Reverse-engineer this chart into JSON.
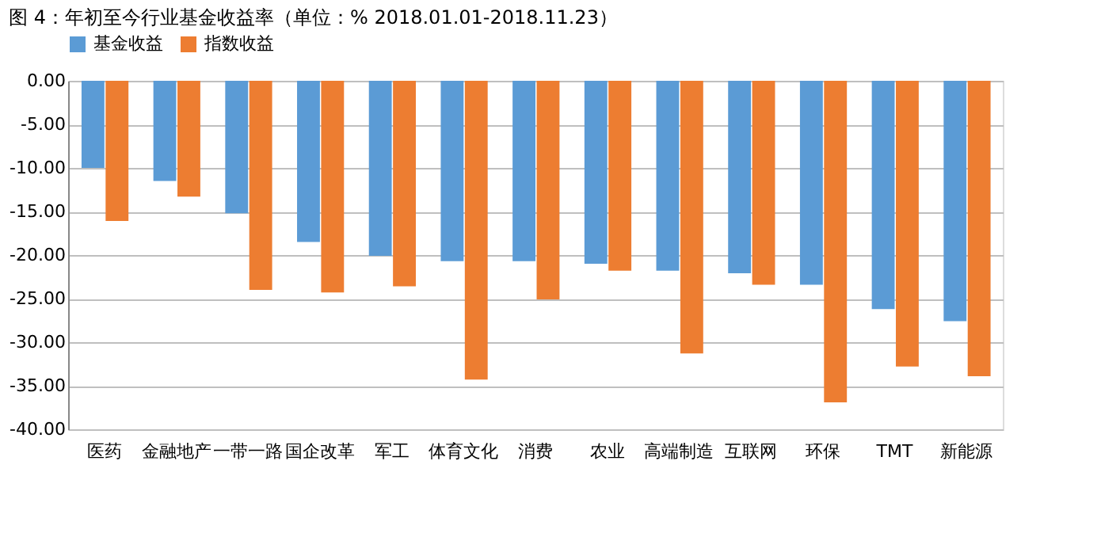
{
  "chart_data": {
    "type": "bar",
    "title": "图 4：年初至今行业基金收益率（单位：% 2018.01.01-2018.11.23）",
    "categories": [
      "医药",
      "金融地产",
      "一带一路",
      "国企改革",
      "军工",
      "体育文化",
      "消费",
      "农业",
      "高端制造",
      "互联网",
      "环保",
      "TMT",
      "新能源"
    ],
    "series": [
      {
        "name": "基金收益",
        "color": "#5b9bd5",
        "values": [
          -10.0,
          -11.5,
          -15.2,
          -18.5,
          -20.1,
          -20.7,
          -20.7,
          -21.0,
          -21.8,
          -22.1,
          -23.4,
          -26.2,
          -27.6
        ]
      },
      {
        "name": "指数收益",
        "color": "#ed7d31",
        "values": [
          -16.1,
          -13.3,
          -24.0,
          -24.3,
          -23.6,
          -34.3,
          -25.1,
          -21.8,
          -31.3,
          -23.4,
          -36.9,
          -32.8,
          -33.9
        ]
      }
    ],
    "ylim": [
      -40,
      0
    ],
    "yticks": [
      {
        "value": 0,
        "label": "0.00"
      },
      {
        "value": -5,
        "label": "-5.00"
      },
      {
        "value": -10,
        "label": "-10.00"
      },
      {
        "value": -15,
        "label": "-15.00"
      },
      {
        "value": -20,
        "label": "-20.00"
      },
      {
        "value": -25,
        "label": "-25.00"
      },
      {
        "value": -30,
        "label": "-30.00"
      },
      {
        "value": -35,
        "label": "-35.00"
      },
      {
        "value": -40,
        "label": "-40.00"
      }
    ],
    "grid": "y",
    "legend": "top"
  }
}
